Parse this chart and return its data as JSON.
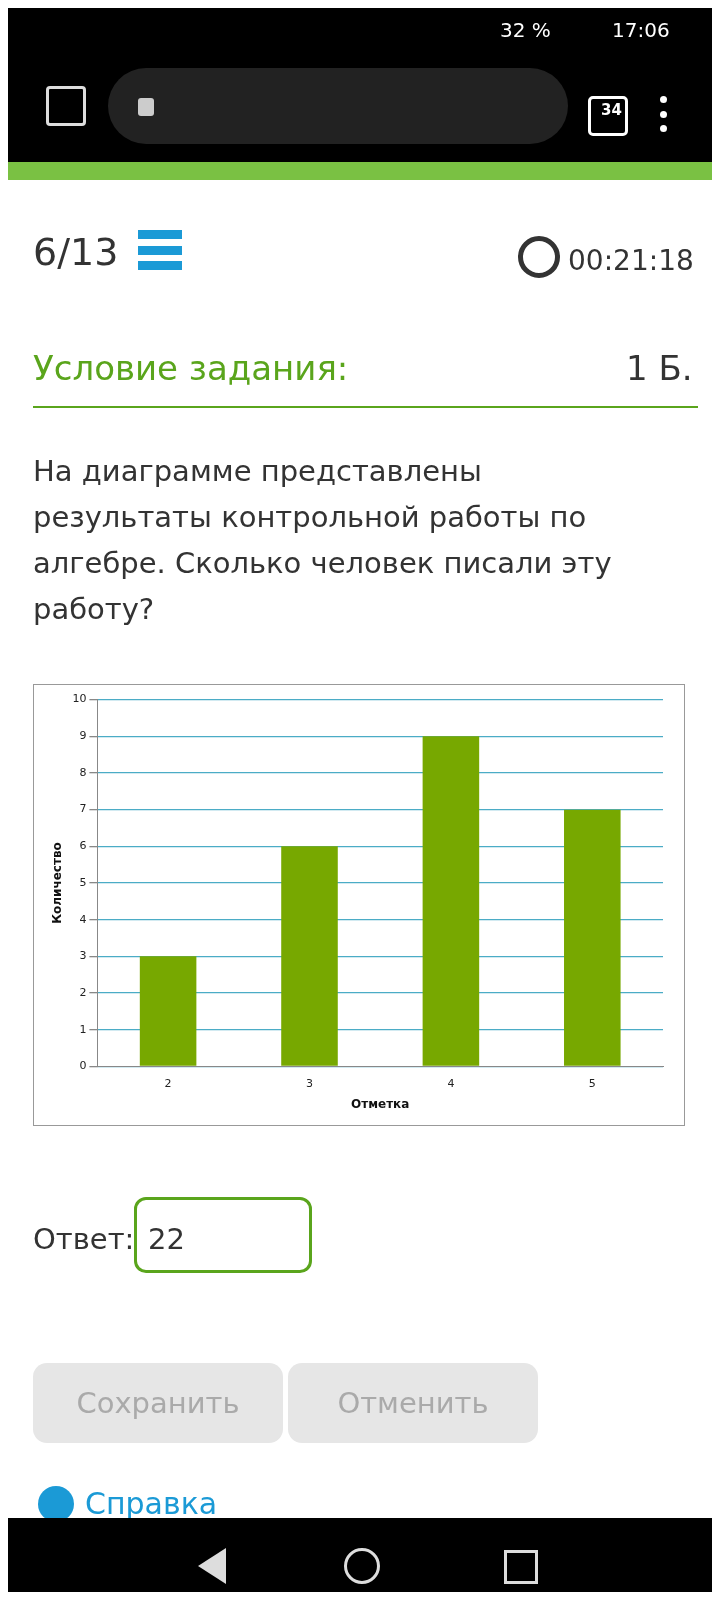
{
  "chart_data": {
    "type": "bar",
    "title": "На диаграмме представлены результаты контрольной работы по алгебре. Сколько человек писали эту работу?",
    "xlabel": "Отметка",
    "ylabel": "Количество",
    "categories": [
      "2",
      "3",
      "4",
      "5"
    ],
    "values": [
      3,
      6,
      9,
      7
    ],
    "color": "#77a800",
    "ylim": [
      0,
      10
    ],
    "yticks": [
      0,
      1,
      2,
      3,
      4,
      5,
      6,
      7,
      8,
      9,
      10
    ],
    "grid": "y",
    "legend": false,
    "annotations": [
      "32 %",
      "17:06",
      "34",
      "6/13",
      "00:21:18",
      "Условие задания:",
      "1 Б.",
      "Ответ:",
      "22",
      "Сохранить",
      "Отменить",
      "Справка"
    ]
  }
}
